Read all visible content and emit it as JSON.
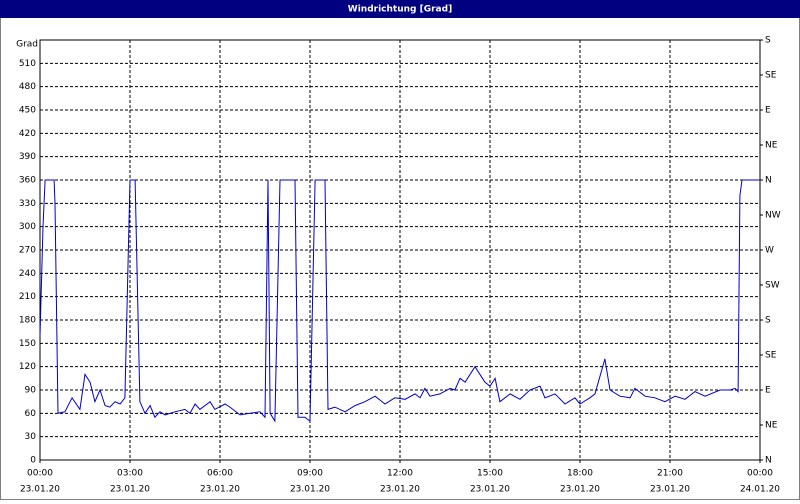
{
  "chart_data": {
    "type": "line",
    "title": "Windrichtung [Grad]",
    "y_label": "Grad",
    "xlim": [
      0,
      24
    ],
    "xticks": [
      {
        "value": 0,
        "label": "00:00",
        "date": "23.01.20"
      },
      {
        "value": 3,
        "label": "03:00",
        "date": "23.01.20"
      },
      {
        "value": 6,
        "label": "06:00",
        "date": "23.01.20"
      },
      {
        "value": 9,
        "label": "09:00",
        "date": "23.01.20"
      },
      {
        "value": 12,
        "label": "12:00",
        "date": "23.01.20"
      },
      {
        "value": 15,
        "label": "15:00",
        "date": "23.01.20"
      },
      {
        "value": 18,
        "label": "18:00",
        "date": "23.01.20"
      },
      {
        "value": 21,
        "label": "21:00",
        "date": "23.01.20"
      },
      {
        "value": 24,
        "label": "00:00",
        "date": "24.01.20"
      }
    ],
    "ylim": [
      0,
      540
    ],
    "yticks": [
      0,
      30,
      60,
      90,
      120,
      150,
      180,
      210,
      240,
      270,
      300,
      330,
      360,
      390,
      420,
      450,
      480,
      510
    ],
    "y2lim": [
      0,
      540
    ],
    "y2ticks": [
      {
        "value": 0,
        "label": "N"
      },
      {
        "value": 45,
        "label": "NE"
      },
      {
        "value": 90,
        "label": "E"
      },
      {
        "value": 135,
        "label": "SE"
      },
      {
        "value": 180,
        "label": "S"
      },
      {
        "value": 225,
        "label": "SW"
      },
      {
        "value": 270,
        "label": "W"
      },
      {
        "value": 315,
        "label": "NW"
      },
      {
        "value": 360,
        "label": "N"
      },
      {
        "value": 405,
        "label": "NE"
      },
      {
        "value": 450,
        "label": "E"
      },
      {
        "value": 495,
        "label": "SE"
      },
      {
        "value": 540,
        "label": "S"
      }
    ],
    "grid": true,
    "series": [
      {
        "color": "#0000cc",
        "x": [
          0,
          0.1,
          0.17,
          0.47,
          0.5,
          0.6,
          0.83,
          1.07,
          1.33,
          1.5,
          1.67,
          1.83,
          2,
          2.17,
          2.33,
          2.5,
          2.67,
          2.83,
          3,
          3.17,
          3.33,
          3.5,
          3.67,
          3.83,
          4,
          4.17,
          4.5,
          4.83,
          5,
          5.17,
          5.33,
          5.67,
          5.83,
          6.17,
          6.33,
          6.67,
          7,
          7.33,
          7.5,
          7.6,
          7.67,
          7.83,
          8,
          8.17,
          8.5,
          8.6,
          8.83,
          9,
          9.17,
          9.5,
          9.6,
          9.83,
          10.17,
          10.5,
          10.83,
          11.17,
          11.5,
          11.83,
          12.17,
          12.5,
          12.67,
          12.83,
          13,
          13.33,
          13.67,
          13.83,
          14,
          14.17,
          14.5,
          14.83,
          15,
          15.17,
          15.33,
          15.67,
          16,
          16.33,
          16.67,
          16.83,
          17.17,
          17.5,
          17.83,
          18,
          18.33,
          18.5,
          18.83,
          19,
          19.33,
          19.67,
          19.83,
          20.17,
          20.5,
          20.83,
          21.17,
          21.5,
          21.83,
          22.17,
          22.67,
          23,
          23.17,
          23.27,
          23.33,
          23.4,
          24
        ],
        "values": [
          160,
          300,
          360,
          360,
          330,
          60,
          62,
          80,
          65,
          110,
          100,
          75,
          90,
          70,
          68,
          75,
          72,
          80,
          360,
          360,
          75,
          60,
          70,
          55,
          62,
          58,
          62,
          65,
          60,
          72,
          65,
          75,
          65,
          72,
          68,
          58,
          60,
          62,
          55,
          360,
          60,
          50,
          360,
          360,
          360,
          55,
          55,
          50,
          360,
          360,
          65,
          68,
          62,
          70,
          75,
          82,
          72,
          80,
          78,
          85,
          80,
          92,
          82,
          85,
          92,
          90,
          105,
          100,
          120,
          100,
          95,
          105,
          75,
          85,
          78,
          90,
          95,
          80,
          85,
          72,
          80,
          72,
          80,
          85,
          130,
          90,
          82,
          80,
          92,
          82,
          80,
          75,
          82,
          78,
          88,
          82,
          90,
          90,
          92,
          88,
          340,
          360,
          360
        ]
      }
    ]
  }
}
